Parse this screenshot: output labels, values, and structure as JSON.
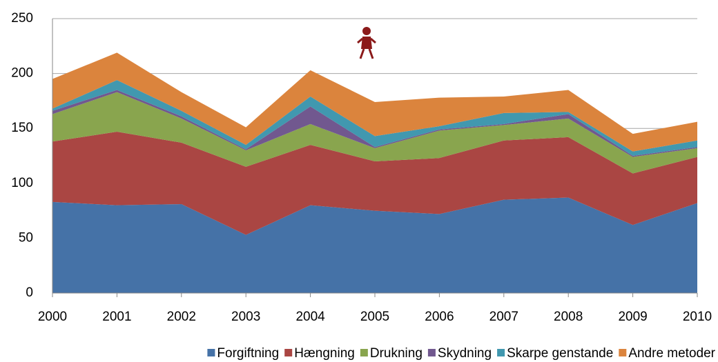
{
  "chart_data": {
    "type": "stacked_area",
    "x": [
      2000,
      2001,
      2002,
      2003,
      2004,
      2005,
      2006,
      2007,
      2008,
      2009,
      2010
    ],
    "xlim": [
      2000,
      2010
    ],
    "xticks": [
      2000,
      2001,
      2002,
      2003,
      2004,
      2005,
      2006,
      2007,
      2008,
      2009,
      2010
    ],
    "ylim": [
      0,
      250
    ],
    "yticks": [
      0,
      50,
      100,
      150,
      200,
      250
    ],
    "grid": true,
    "legend": "bottom",
    "series": [
      {
        "name": "Forgiftning",
        "color": "#4572a7",
        "values": [
          83,
          80,
          81,
          53,
          80,
          75,
          72,
          85,
          87,
          62,
          82
        ]
      },
      {
        "name": "Hængning",
        "color": "#aa4643",
        "values": [
          55,
          67,
          56,
          62,
          55,
          45,
          51,
          54,
          55,
          47,
          42
        ]
      },
      {
        "name": "Drukning",
        "color": "#89a54e",
        "values": [
          25,
          36,
          22,
          15,
          19,
          12,
          25,
          14,
          17,
          15,
          8
        ]
      },
      {
        "name": "Skydning",
        "color": "#71588f",
        "values": [
          3,
          2,
          2,
          1,
          16,
          1,
          1,
          1,
          4,
          1,
          1
        ]
      },
      {
        "name": "Skarpe genstande",
        "color": "#4198af",
        "values": [
          2,
          9,
          5,
          4,
          9,
          10,
          3,
          10,
          2,
          4,
          6
        ]
      },
      {
        "name": "Andre metoder",
        "color": "#db843d",
        "values": [
          27,
          25,
          17,
          16,
          24,
          31,
          26,
          15,
          20,
          16,
          17
        ]
      }
    ]
  }
}
